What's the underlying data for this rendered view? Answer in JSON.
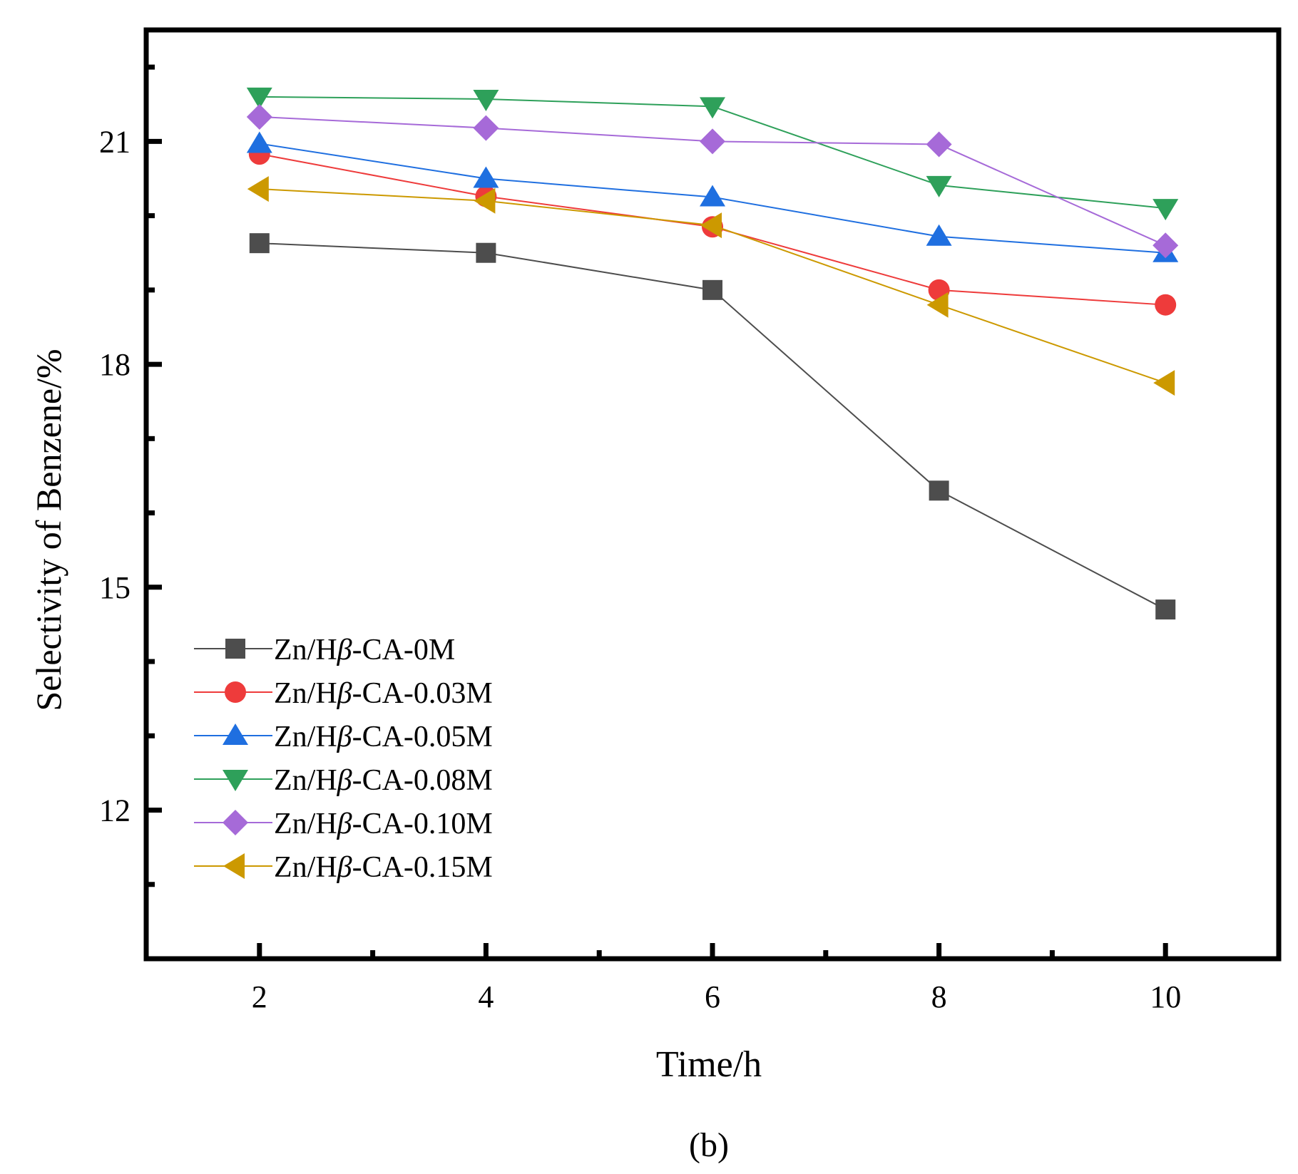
{
  "chart_data": {
    "type": "line",
    "title": "",
    "xlabel": "Time/h",
    "ylabel": "Selectivity of Benzene/%",
    "caption": "(b)",
    "xlim": [
      1,
      11
    ],
    "ylim": [
      10,
      22.5
    ],
    "x": [
      2,
      4,
      6,
      8,
      10
    ],
    "x_ticks": [
      2,
      4,
      6,
      8,
      10
    ],
    "x_tick_labels": [
      "2",
      "4",
      "6",
      "8",
      "10"
    ],
    "x_minor_ticks": [
      3,
      5,
      7,
      9
    ],
    "y_ticks": [
      12,
      15,
      18,
      21
    ],
    "y_tick_labels": [
      "12",
      "15",
      "18",
      "21"
    ],
    "y_minor_ticks": [
      11,
      13,
      14,
      16,
      17,
      19,
      20,
      22
    ],
    "legend_position": "bottom-left",
    "series": [
      {
        "name": "Zn/Hβ-CA-0M",
        "legend_prefix": "Zn/H",
        "legend_greek": "β",
        "legend_suffix": "-CA-0M",
        "color": "#4d4d4d",
        "marker": "square",
        "values": [
          19.63,
          19.5,
          19.0,
          16.3,
          14.7
        ]
      },
      {
        "name": "Zn/Hβ-CA-0.03M",
        "legend_prefix": "Zn/H",
        "legend_greek": "β",
        "legend_suffix": "-CA-0.03M",
        "color": "#ee3b3b",
        "marker": "circle",
        "values": [
          20.83,
          20.26,
          19.85,
          19.0,
          18.8
        ]
      },
      {
        "name": "Zn/Hβ-CA-0.05M",
        "legend_prefix": "Zn/H",
        "legend_greek": "β",
        "legend_suffix": "-CA-0.05M",
        "color": "#1f6fe0",
        "marker": "triangle-up",
        "values": [
          20.97,
          20.5,
          20.25,
          19.72,
          19.5
        ]
      },
      {
        "name": "Zn/Hβ-CA-0.08M",
        "legend_prefix": "Zn/H",
        "legend_greek": "β",
        "legend_suffix": "-CA-0.08M",
        "color": "#2ea05a",
        "marker": "triangle-down",
        "values": [
          21.6,
          21.57,
          21.47,
          20.41,
          20.1
        ]
      },
      {
        "name": "Zn/Hβ-CA-0.10M",
        "legend_prefix": "Zn/H",
        "legend_greek": "β",
        "legend_suffix": "-CA-0.10M",
        "color": "#a66ad8",
        "marker": "diamond",
        "values": [
          21.33,
          21.18,
          21.0,
          20.96,
          19.6
        ]
      },
      {
        "name": "Zn/Hβ-CA-0.15M",
        "legend_prefix": "Zn/H",
        "legend_greek": "β",
        "legend_suffix": "-CA-0.15M",
        "color": "#cc9900",
        "marker": "triangle-left",
        "values": [
          20.36,
          20.2,
          19.87,
          18.8,
          17.75
        ]
      }
    ]
  }
}
